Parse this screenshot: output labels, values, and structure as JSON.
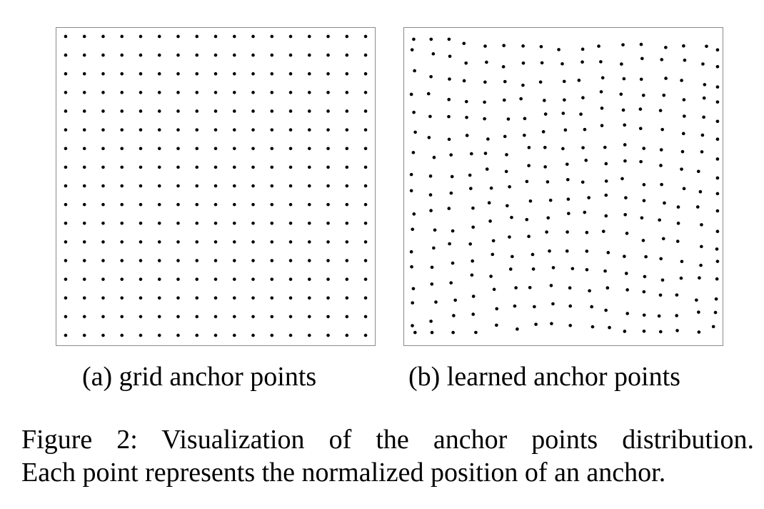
{
  "figure": {
    "caption_line1": "Figure 2: Visualization of the anchor points distribution.",
    "caption_line2": "Each point represents the normalized position of an anchor.",
    "dot_color": "#000000",
    "frame_color": "#8a8a8a"
  },
  "chart_data": [
    {
      "type": "scatter",
      "subcaption": "(a) grid anchor points",
      "xlim": [
        0,
        1
      ],
      "ylim": [
        0,
        1
      ],
      "distribution": "grid",
      "grid_size": [
        17,
        17
      ]
    },
    {
      "type": "scatter",
      "subcaption": "(b) learned anchor points",
      "xlim": [
        0,
        1
      ],
      "ylim": [
        0,
        1
      ],
      "distribution": "learned",
      "point_count": 289
    }
  ]
}
